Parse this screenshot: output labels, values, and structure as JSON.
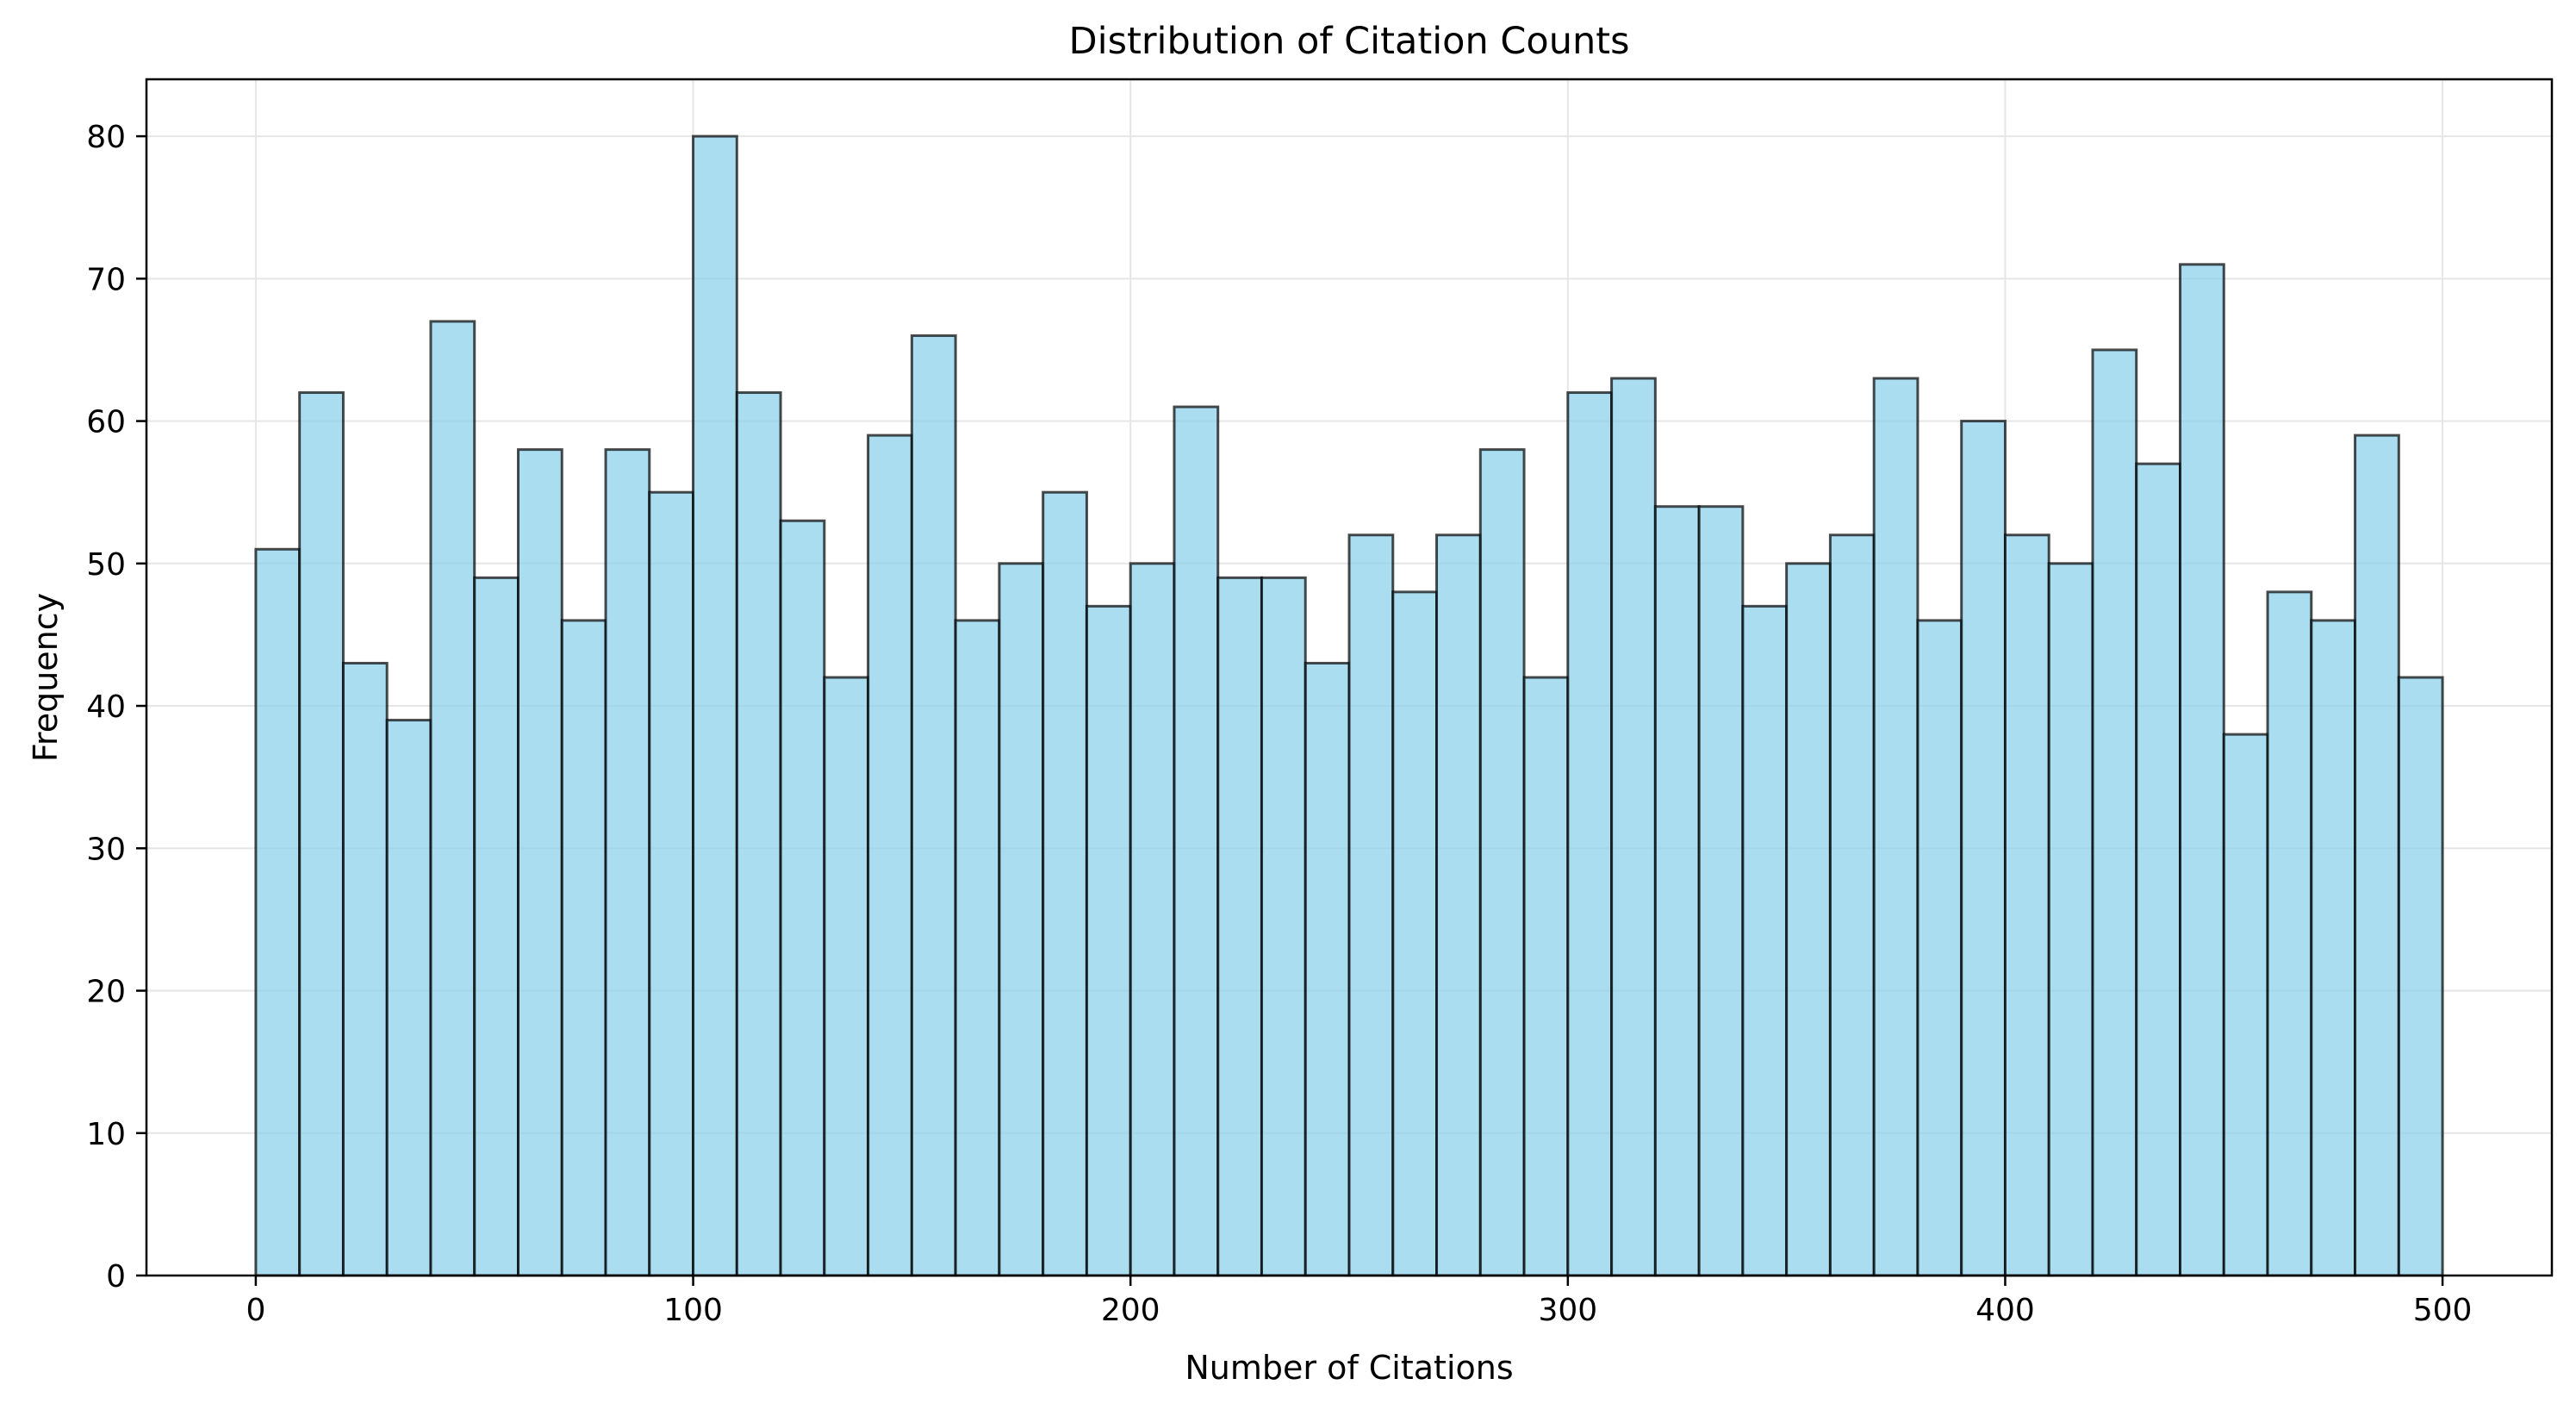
{
  "chart_data": {
    "type": "bar",
    "title": "Distribution of Citation Counts",
    "xlabel": "Number of Citations",
    "ylabel": "Frequency",
    "bin_start": 0,
    "bin_width": 10,
    "values": [
      51,
      62,
      43,
      39,
      67,
      49,
      58,
      46,
      58,
      55,
      80,
      62,
      53,
      42,
      59,
      66,
      46,
      50,
      55,
      47,
      50,
      61,
      49,
      49,
      43,
      52,
      48,
      52,
      58,
      42,
      62,
      63,
      54,
      54,
      47,
      50,
      52,
      63,
      46,
      60,
      52,
      50,
      65,
      57,
      71,
      38,
      48,
      46,
      59,
      42
    ],
    "xlim": [
      -25,
      525
    ],
    "ylim": [
      0,
      84
    ],
    "xticks": [
      0,
      100,
      200,
      300,
      400,
      500
    ],
    "yticks": [
      0,
      10,
      20,
      30,
      40,
      50,
      60,
      70,
      80
    ],
    "grid": true,
    "colors": {
      "bar_fill": "#87ceeb",
      "bar_edge": "#000000",
      "grid": "#e6e6e6"
    }
  }
}
